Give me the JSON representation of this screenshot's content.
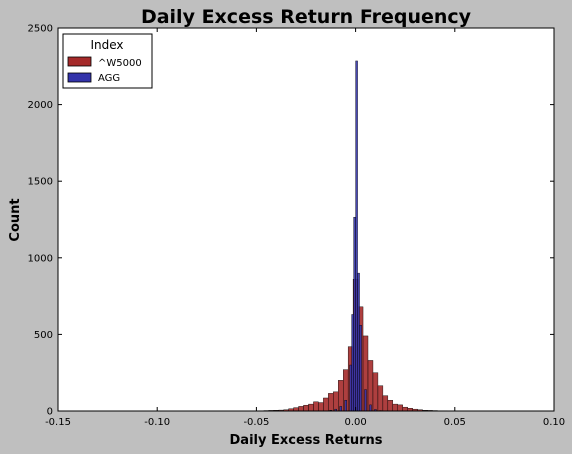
{
  "chart_data": {
    "type": "bar",
    "title": "Daily Excess Return Frequency",
    "xlabel": "Daily Excess Returns",
    "ylabel": "Count",
    "xlim": [
      -0.15,
      0.1
    ],
    "ylim": [
      0,
      2500
    ],
    "xticks": [
      "-0.15",
      "-0.10",
      "-0.05",
      "0.00",
      "0.05",
      "0.10"
    ],
    "yticks": [
      "0",
      "500",
      "1000",
      "1500",
      "2000",
      "2500"
    ],
    "grid": false,
    "legend": {
      "title": "Index",
      "position": "top-left"
    },
    "series": [
      {
        "name": "^W5000",
        "color": "#a52a2a",
        "bins": [
          [
            -0.0475,
            2
          ],
          [
            -0.045,
            3
          ],
          [
            -0.0425,
            4
          ],
          [
            -0.04,
            5
          ],
          [
            -0.0375,
            6
          ],
          [
            -0.035,
            8
          ],
          [
            -0.0325,
            15
          ],
          [
            -0.03,
            22
          ],
          [
            -0.0275,
            30
          ],
          [
            -0.025,
            38
          ],
          [
            -0.0225,
            45
          ],
          [
            -0.02,
            60
          ],
          [
            -0.0175,
            55
          ],
          [
            -0.015,
            85
          ],
          [
            -0.0125,
            115
          ],
          [
            -0.01,
            125
          ],
          [
            -0.0075,
            200
          ],
          [
            -0.005,
            270
          ],
          [
            -0.0025,
            420
          ],
          [
            0.0,
            860
          ],
          [
            0.0025,
            680
          ],
          [
            0.005,
            490
          ],
          [
            0.0075,
            330
          ],
          [
            0.01,
            250
          ],
          [
            0.0125,
            165
          ],
          [
            0.015,
            100
          ],
          [
            0.0175,
            70
          ],
          [
            0.02,
            45
          ],
          [
            0.0225,
            40
          ],
          [
            0.025,
            25
          ],
          [
            0.0275,
            18
          ],
          [
            0.03,
            12
          ],
          [
            0.0325,
            8
          ],
          [
            0.035,
            5
          ],
          [
            0.0375,
            4
          ],
          [
            0.04,
            3
          ],
          [
            0.0425,
            2
          ],
          [
            0.045,
            2
          ]
        ]
      },
      {
        "name": "AGG",
        "color": "#3333aa",
        "bins": [
          [
            -0.0125,
            5
          ],
          [
            -0.01,
            12
          ],
          [
            -0.0075,
            30
          ],
          [
            -0.005,
            70
          ],
          [
            -0.0025,
            300
          ],
          [
            -0.0015,
            630
          ],
          [
            -0.0005,
            1265
          ],
          [
            0.0005,
            2285
          ],
          [
            0.0015,
            900
          ],
          [
            0.0025,
            560
          ],
          [
            0.005,
            140
          ],
          [
            0.0075,
            40
          ],
          [
            0.01,
            10
          ],
          [
            0.0125,
            3
          ]
        ]
      }
    ]
  }
}
